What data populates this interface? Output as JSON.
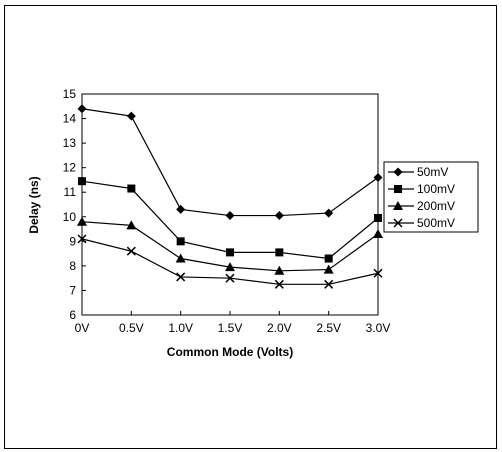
{
  "chart_data": {
    "type": "line",
    "xlabel": "Common Mode (Volts)",
    "ylabel": "Delay (ns)",
    "x": [
      0,
      0.5,
      1.0,
      1.5,
      2.0,
      2.5,
      3.0
    ],
    "xticks": [
      "0V",
      "0.5V",
      "1.0V",
      "1.5V",
      "2.0V",
      "2.5V",
      "3.0V"
    ],
    "yticks": [
      6,
      7,
      8,
      9,
      10,
      11,
      12,
      13,
      14,
      15
    ],
    "xlim": [
      0,
      3.0
    ],
    "ylim": [
      6,
      15
    ],
    "grid": false,
    "legend_position": "right",
    "series": [
      {
        "name": "50mV",
        "marker": "diamond",
        "values": [
          14.4,
          14.1,
          10.3,
          10.05,
          10.05,
          10.15,
          11.6
        ]
      },
      {
        "name": "100mV",
        "marker": "square",
        "values": [
          11.45,
          11.15,
          9.0,
          8.55,
          8.55,
          8.3,
          9.95
        ]
      },
      {
        "name": "200mV",
        "marker": "triangle",
        "values": [
          9.8,
          9.65,
          8.3,
          7.95,
          7.8,
          7.85,
          9.3
        ]
      },
      {
        "name": "500mV",
        "marker": "x",
        "values": [
          9.1,
          8.6,
          7.55,
          7.5,
          7.25,
          7.25,
          7.7
        ]
      }
    ]
  }
}
